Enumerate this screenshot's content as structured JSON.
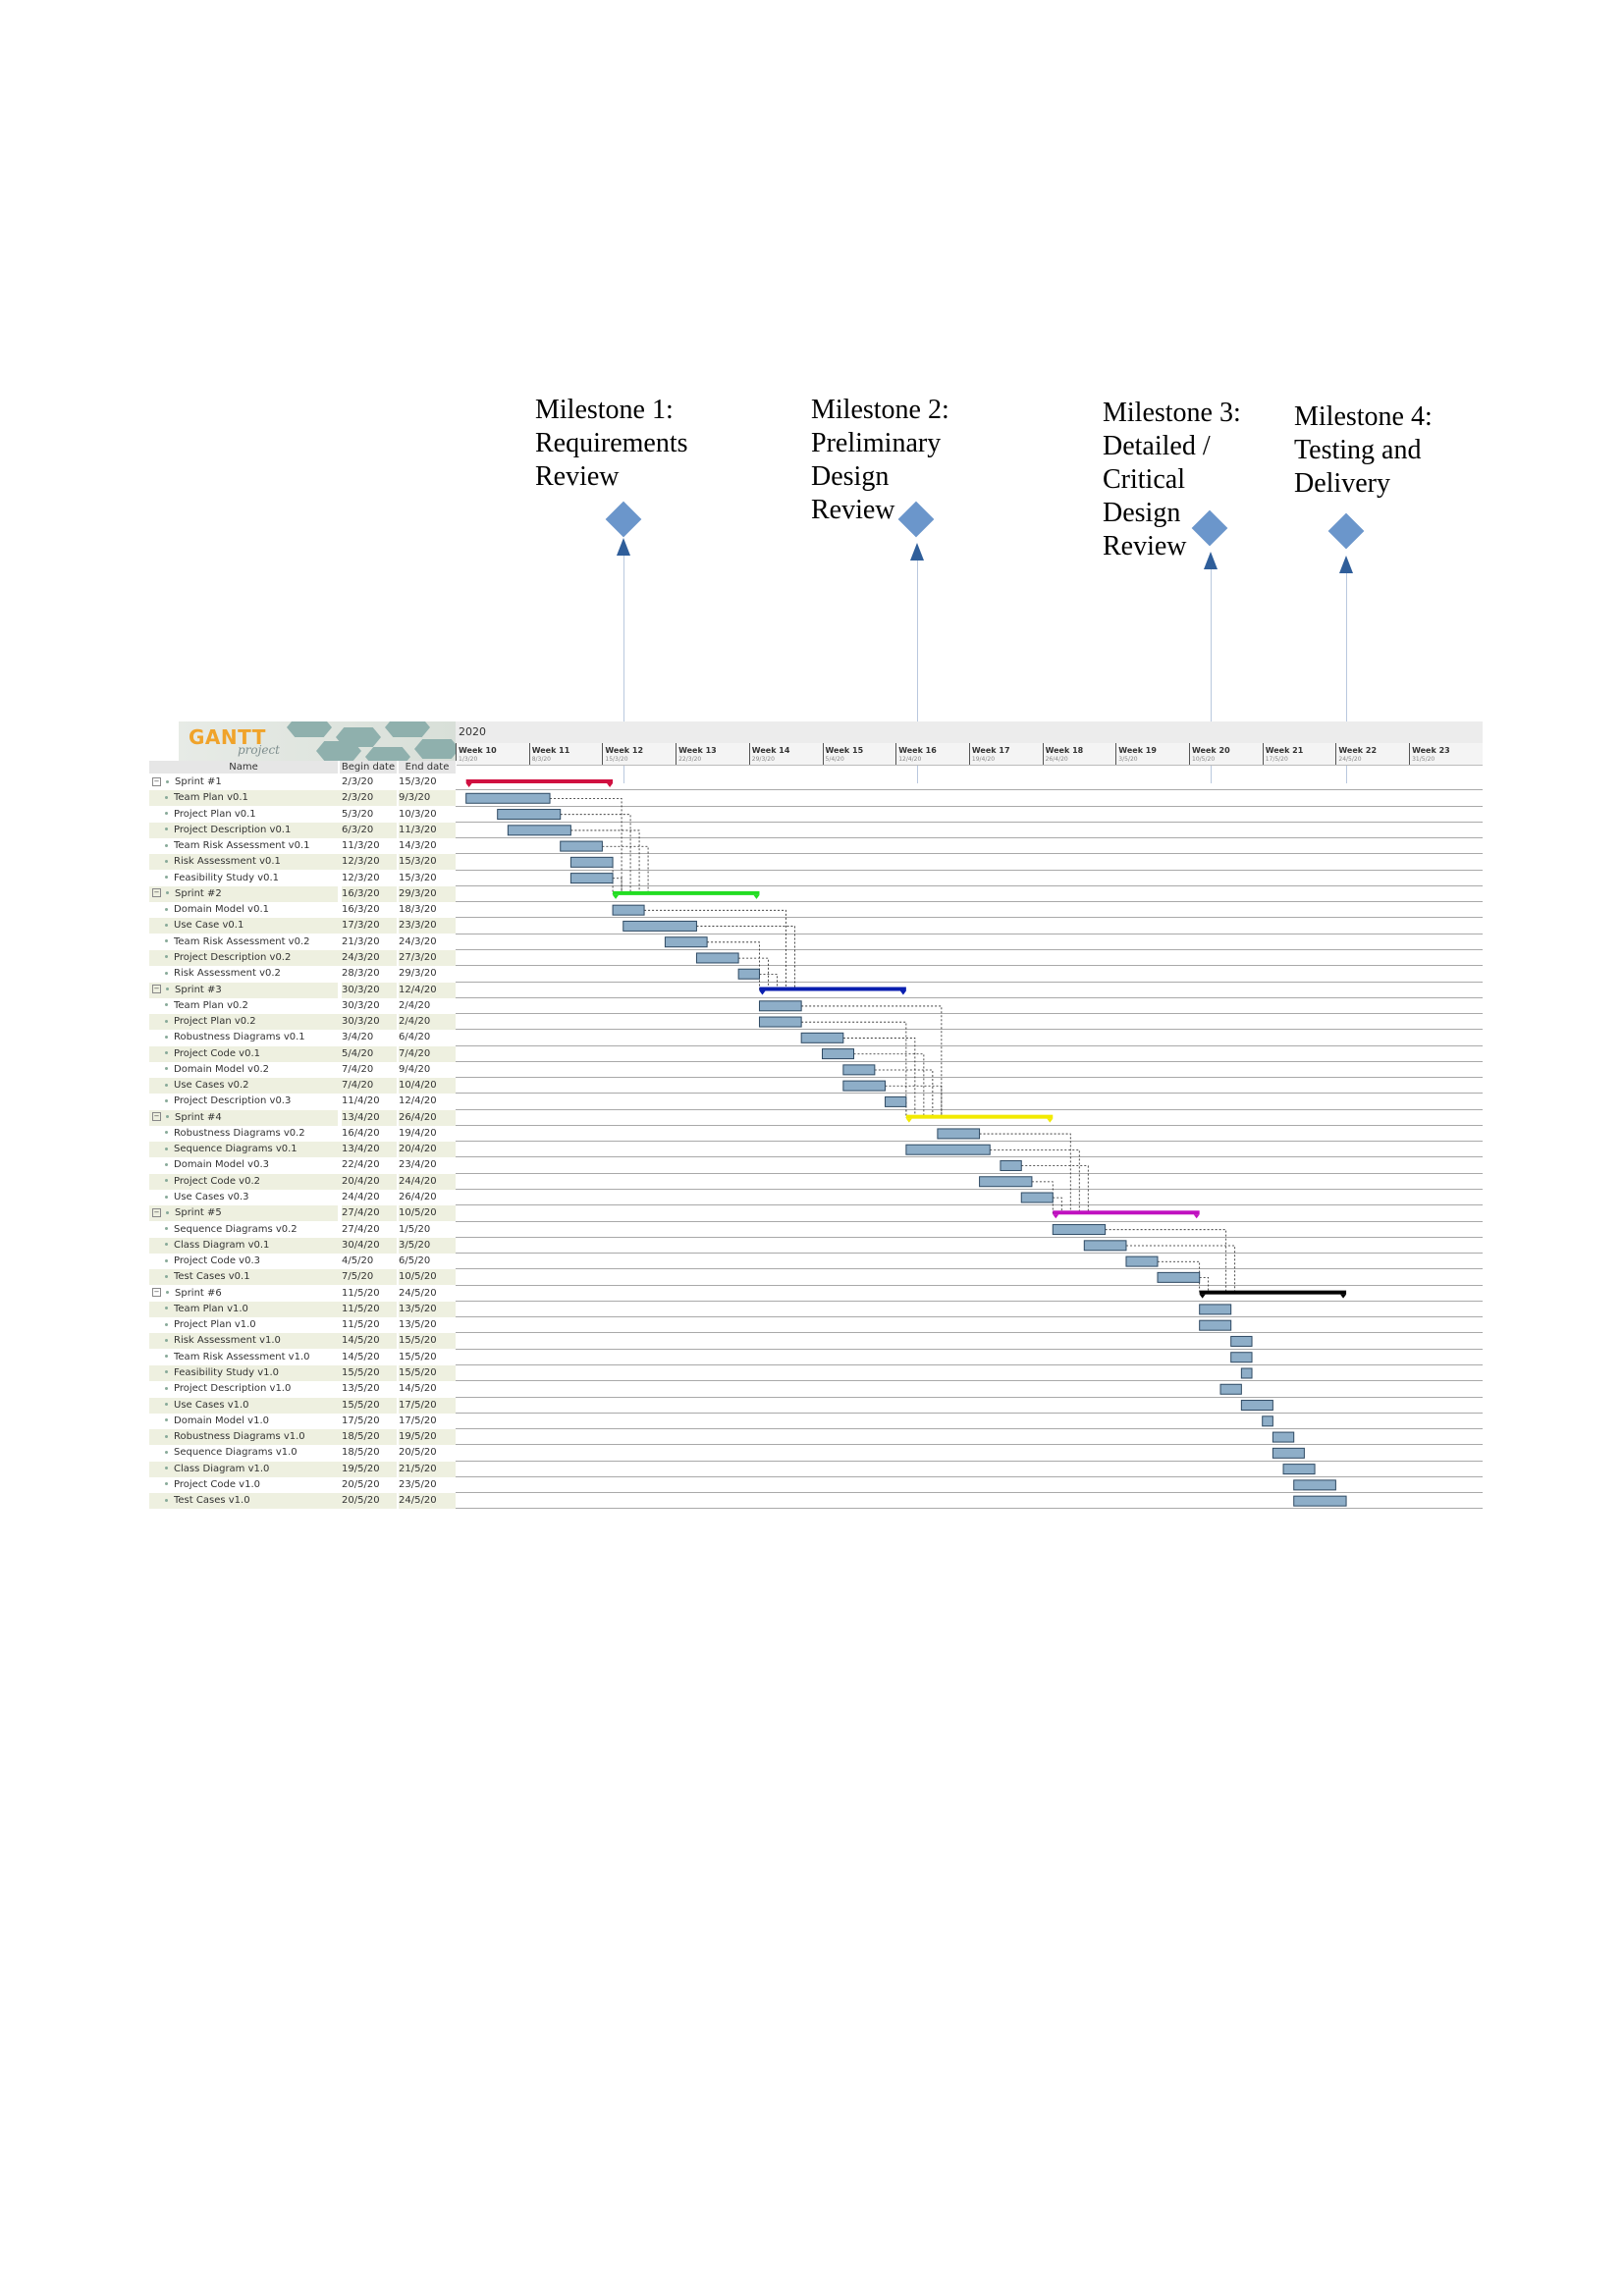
{
  "milestones": [
    {
      "lines": [
        "Milestone 1:",
        "Requirements",
        "Review"
      ]
    },
    {
      "lines": [
        "Milestone 2:",
        "Preliminary",
        "Design",
        "Review"
      ]
    },
    {
      "lines": [
        "Milestone 3:",
        "Detailed /",
        "Critical",
        "Design",
        "Review"
      ]
    },
    {
      "lines": [
        "Milestone 4:",
        "Testing and",
        "Delivery"
      ]
    }
  ],
  "gantt": {
    "logo_text": "GANTT",
    "logo_sub": "project",
    "year": "2020",
    "columns": {
      "name": "Name",
      "begin": "Begin date",
      "end": "End date"
    },
    "weeks": [
      {
        "label": "Week 10",
        "date": "1/3/20"
      },
      {
        "label": "Week 11",
        "date": "8/3/20"
      },
      {
        "label": "Week 12",
        "date": "15/3/20"
      },
      {
        "label": "Week 13",
        "date": "22/3/20"
      },
      {
        "label": "Week 14",
        "date": "29/3/20"
      },
      {
        "label": "Week 15",
        "date": "5/4/20"
      },
      {
        "label": "Week 16",
        "date": "12/4/20"
      },
      {
        "label": "Week 17",
        "date": "19/4/20"
      },
      {
        "label": "Week 18",
        "date": "26/4/20"
      },
      {
        "label": "Week 19",
        "date": "3/5/20"
      },
      {
        "label": "Week 20",
        "date": "10/5/20"
      },
      {
        "label": "Week 21",
        "date": "17/5/20"
      },
      {
        "label": "Week 22",
        "date": "24/5/20"
      },
      {
        "label": "Week 23",
        "date": "31/5/20"
      }
    ],
    "tasks": [
      {
        "name": "Sprint #1",
        "begin": "2/3/20",
        "end": "15/3/20",
        "group": true,
        "color": "#d01040"
      },
      {
        "name": "Team Plan v0.1",
        "begin": "2/3/20",
        "end": "9/3/20"
      },
      {
        "name": "Project Plan v0.1",
        "begin": "5/3/20",
        "end": "10/3/20"
      },
      {
        "name": "Project Description v0.1",
        "begin": "6/3/20",
        "end": "11/3/20"
      },
      {
        "name": "Team Risk Assessment v0.1",
        "begin": "11/3/20",
        "end": "14/3/20"
      },
      {
        "name": "Risk Assessment v0.1",
        "begin": "12/3/20",
        "end": "15/3/20"
      },
      {
        "name": "Feasibility Study v0.1",
        "begin": "12/3/20",
        "end": "15/3/20"
      },
      {
        "name": "Sprint #2",
        "begin": "16/3/20",
        "end": "29/3/20",
        "group": true,
        "color": "#22dd22"
      },
      {
        "name": "Domain Model v0.1",
        "begin": "16/3/20",
        "end": "18/3/20"
      },
      {
        "name": "Use Case v0.1",
        "begin": "17/3/20",
        "end": "23/3/20"
      },
      {
        "name": "Team Risk Assessment v0.2",
        "begin": "21/3/20",
        "end": "24/3/20"
      },
      {
        "name": "Project Description v0.2",
        "begin": "24/3/20",
        "end": "27/3/20"
      },
      {
        "name": "Risk Assessment v0.2",
        "begin": "28/3/20",
        "end": "29/3/20"
      },
      {
        "name": "Sprint #3",
        "begin": "30/3/20",
        "end": "12/4/20",
        "group": true,
        "color": "#0a1fb0"
      },
      {
        "name": "Team Plan v0.2",
        "begin": "30/3/20",
        "end": "2/4/20"
      },
      {
        "name": "Project Plan v0.2",
        "begin": "30/3/20",
        "end": "2/4/20"
      },
      {
        "name": "Robustness Diagrams v0.1",
        "begin": "3/4/20",
        "end": "6/4/20"
      },
      {
        "name": "Project Code v0.1",
        "begin": "5/4/20",
        "end": "7/4/20"
      },
      {
        "name": "Domain Model v0.2",
        "begin": "7/4/20",
        "end": "9/4/20"
      },
      {
        "name": "Use Cases v0.2",
        "begin": "7/4/20",
        "end": "10/4/20"
      },
      {
        "name": "Project Description v0.3",
        "begin": "11/4/20",
        "end": "12/4/20"
      },
      {
        "name": "Sprint #4",
        "begin": "13/4/20",
        "end": "26/4/20",
        "group": true,
        "color": "#f2ea00"
      },
      {
        "name": "Robustness Diagrams v0.2",
        "begin": "16/4/20",
        "end": "19/4/20"
      },
      {
        "name": "Sequence Diagrams v0.1",
        "begin": "13/4/20",
        "end": "20/4/20"
      },
      {
        "name": "Domain Model v0.3",
        "begin": "22/4/20",
        "end": "23/4/20"
      },
      {
        "name": "Project Code v0.2",
        "begin": "20/4/20",
        "end": "24/4/20"
      },
      {
        "name": "Use Cases v0.3",
        "begin": "24/4/20",
        "end": "26/4/20"
      },
      {
        "name": "Sprint #5",
        "begin": "27/4/20",
        "end": "10/5/20",
        "group": true,
        "color": "#c010c0"
      },
      {
        "name": "Sequence Diagrams v0.2",
        "begin": "27/4/20",
        "end": "1/5/20"
      },
      {
        "name": "Class Diagram v0.1",
        "begin": "30/4/20",
        "end": "3/5/20"
      },
      {
        "name": "Project Code v0.3",
        "begin": "4/5/20",
        "end": "6/5/20"
      },
      {
        "name": "Test Cases v0.1",
        "begin": "7/5/20",
        "end": "10/5/20"
      },
      {
        "name": "Sprint #6",
        "begin": "11/5/20",
        "end": "24/5/20",
        "group": true,
        "color": "#000000"
      },
      {
        "name": "Team Plan v1.0",
        "begin": "11/5/20",
        "end": "13/5/20"
      },
      {
        "name": "Project Plan v1.0",
        "begin": "11/5/20",
        "end": "13/5/20"
      },
      {
        "name": "Risk Assessment v1.0",
        "begin": "14/5/20",
        "end": "15/5/20"
      },
      {
        "name": "Team Risk Assessment v1.0",
        "begin": "14/5/20",
        "end": "15/5/20"
      },
      {
        "name": "Feasibility Study v1.0",
        "begin": "15/5/20",
        "end": "15/5/20"
      },
      {
        "name": "Project Description v1.0",
        "begin": "13/5/20",
        "end": "14/5/20"
      },
      {
        "name": "Use Cases v1.0",
        "begin": "15/5/20",
        "end": "17/5/20"
      },
      {
        "name": "Domain Model v1.0",
        "begin": "17/5/20",
        "end": "17/5/20"
      },
      {
        "name": "Robustness Diagrams v1.0",
        "begin": "18/5/20",
        "end": "19/5/20"
      },
      {
        "name": "Sequence Diagrams v1.0",
        "begin": "18/5/20",
        "end": "20/5/20"
      },
      {
        "name": "Class Diagram v1.0",
        "begin": "19/5/20",
        "end": "21/5/20"
      },
      {
        "name": "Project Code v1.0",
        "begin": "20/5/20",
        "end": "23/5/20"
      },
      {
        "name": "Test Cases v1.0",
        "begin": "20/5/20",
        "end": "24/5/20"
      }
    ],
    "colors": {
      "bar_fill": "#8eaec8",
      "bar_stroke": "#2f4a63",
      "dependency": "#222222",
      "milestone": "#6b96cb"
    }
  }
}
